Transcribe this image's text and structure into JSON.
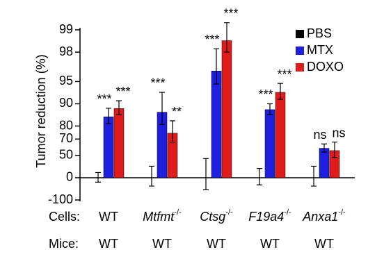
{
  "chart_data": {
    "type": "bar",
    "ylabel": "Tumor reduction (%)",
    "yscale": "log-remaining",
    "ylim": [
      99,
      -100
    ],
    "yticks": [
      99,
      98,
      95,
      90,
      80,
      70,
      50,
      0,
      -100
    ],
    "categories": [
      "WT",
      "Mtfmt",
      "Ctsg",
      "F19a4",
      "Anxa1"
    ],
    "category_superscripts": [
      null,
      "-/-",
      "-/-",
      "-/-",
      "-/-"
    ],
    "row_labels": [
      "Cells:",
      "Mice:"
    ],
    "mice": [
      "WT",
      "WT",
      "WT",
      "WT",
      "WT"
    ],
    "legend": "upper right",
    "series": [
      {
        "name": "PBS",
        "color": "#000000",
        "values": [
          0,
          0,
          0,
          0,
          0
        ],
        "errors": [
          15,
          30,
          45,
          25,
          30
        ]
      },
      {
        "name": "MTX",
        "color": "#1f1fe0",
        "values": [
          85,
          87,
          96.4,
          88,
          60
        ],
        "errors": [
          3.5,
          6,
          1.8,
          2,
          5
        ],
        "significance": [
          "***",
          "***",
          "***",
          "***",
          "ns"
        ]
      },
      {
        "name": "DOXO",
        "color": "#e01b1b",
        "values": [
          88.4,
          75,
          98.6,
          93,
          57
        ],
        "errors": [
          2.5,
          8,
          0.6,
          1.7,
          10
        ],
        "significance": [
          "***",
          "**",
          "***",
          "***",
          "ns"
        ]
      }
    ]
  }
}
